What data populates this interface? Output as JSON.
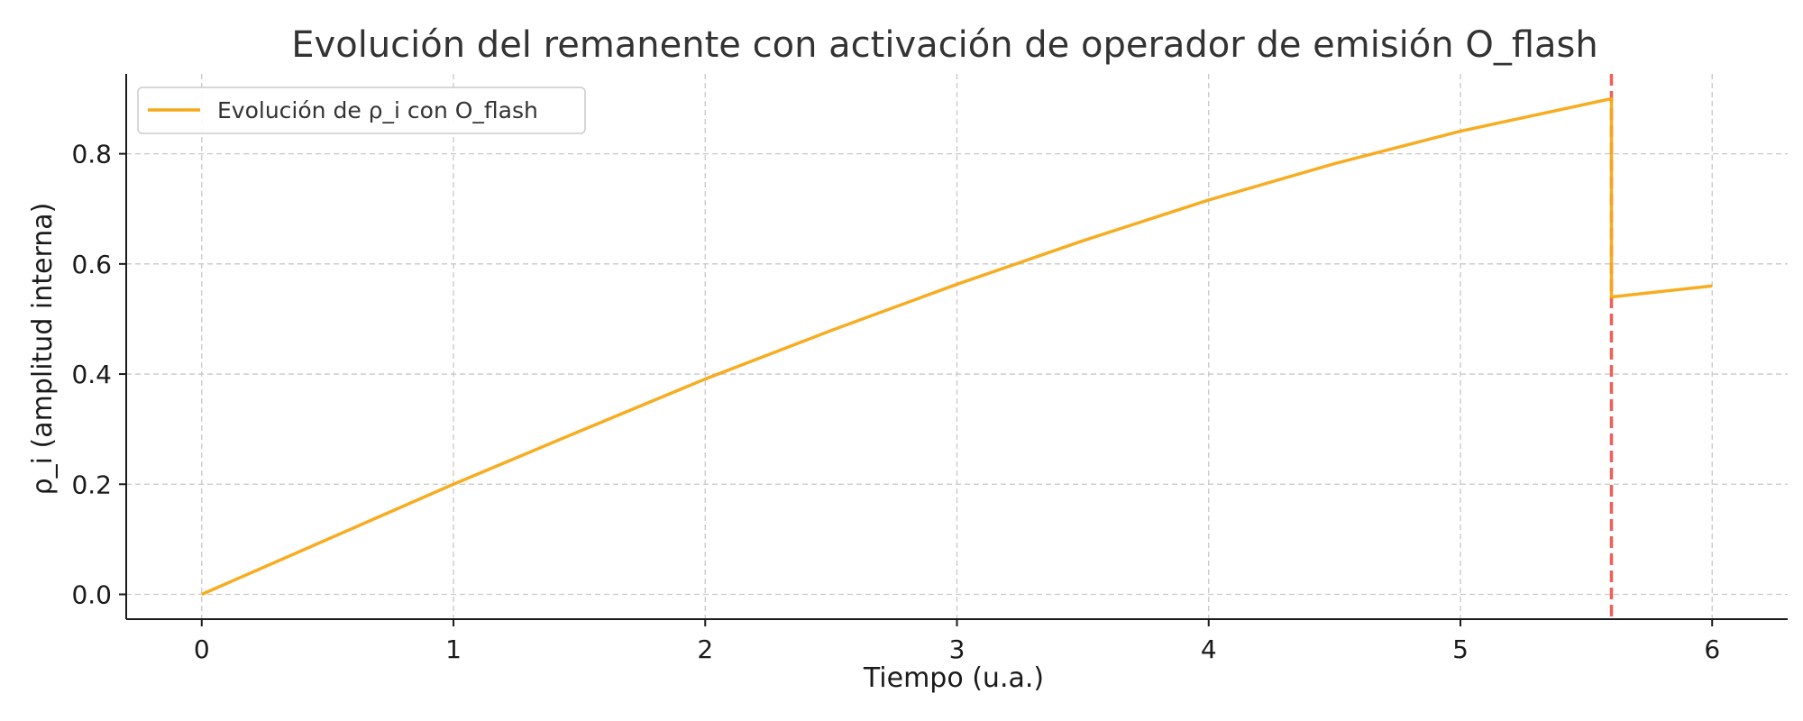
{
  "chart_data": {
    "type": "line",
    "title": "Evolución del remanente con activación de operador de emisión O_flash",
    "xlabel": "Tiempo (u.a.)",
    "ylabel": "ρ_i (amplitud interna)",
    "xlim": [
      -0.3,
      6.3
    ],
    "ylim": [
      -0.045,
      0.945
    ],
    "xticks": [
      0,
      1,
      2,
      3,
      4,
      5,
      6
    ],
    "yticks": [
      0.0,
      0.2,
      0.4,
      0.6,
      0.8
    ],
    "xtick_labels": [
      "0",
      "1",
      "2",
      "3",
      "4",
      "5",
      "6"
    ],
    "ytick_labels": [
      "0.0",
      "0.2",
      "0.4",
      "0.6",
      "0.8"
    ],
    "grid": true,
    "legend_position": "top-left",
    "series": [
      {
        "name": "Evolución de ρ_i con O_flash",
        "color": "#f5a916",
        "x": [
          0,
          0.5,
          1,
          1.5,
          2,
          2.5,
          3,
          3.5,
          4,
          4.5,
          5,
          5.6,
          5.6,
          6
        ],
        "y": [
          0.0,
          0.1,
          0.2,
          0.296,
          0.391,
          0.479,
          0.563,
          0.642,
          0.716,
          0.782,
          0.841,
          0.9,
          0.54,
          0.56
        ]
      }
    ],
    "annotations": [
      {
        "type": "vline",
        "x": 5.6,
        "color": "#f06058",
        "style": "dashed"
      }
    ]
  }
}
